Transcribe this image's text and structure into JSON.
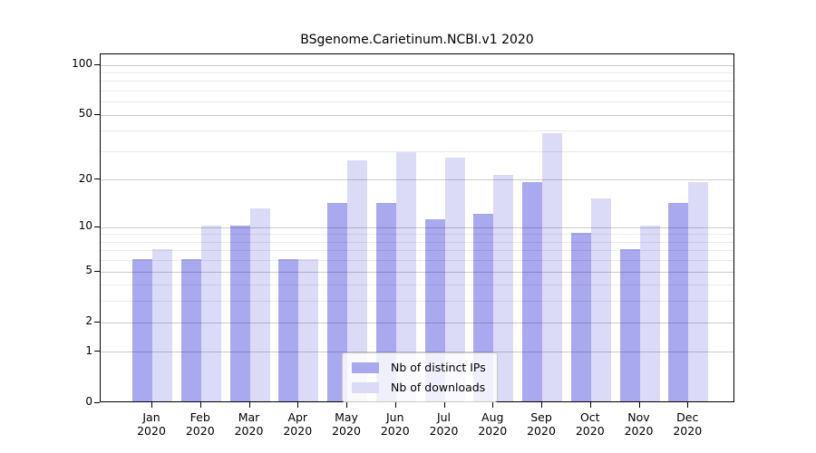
{
  "chart_data": {
    "type": "bar",
    "title": "BSgenome.Carietinum.NCBI.v1 2020",
    "categories": [
      "Jan",
      "Feb",
      "Mar",
      "Apr",
      "May",
      "Jun",
      "Jul",
      "Aug",
      "Sep",
      "Oct",
      "Nov",
      "Dec"
    ],
    "category_year": "2020",
    "series": [
      {
        "name": "Nb of distinct IPs",
        "color": "#a9a9ef",
        "values": [
          6,
          6,
          10,
          6,
          14,
          14,
          11,
          12,
          19,
          9,
          7,
          14
        ]
      },
      {
        "name": "Nb of downloads",
        "color": "#dbdbf7",
        "values": [
          7,
          10,
          13,
          6,
          26,
          29,
          27,
          21,
          38,
          15,
          10,
          19
        ]
      }
    ],
    "yscale": "log1p",
    "ylim": [
      0,
      116
    ],
    "ytick_labels": [
      100,
      50,
      20,
      10,
      5,
      2,
      1,
      0
    ],
    "major_gridlines": [
      100,
      50,
      20,
      10,
      5,
      2,
      1
    ],
    "minor_gridlines": [
      90,
      80,
      70,
      60,
      40,
      30,
      9,
      8,
      7,
      6,
      4,
      3
    ],
    "grid": true,
    "legend_position": "inside-bottom-center"
  },
  "colors": {
    "major_gridline": "rgba(0,0,0,0.20)",
    "minor_gridline": "rgba(0,0,0,0.08)",
    "axis": "#000000",
    "background": "#ffffff"
  }
}
